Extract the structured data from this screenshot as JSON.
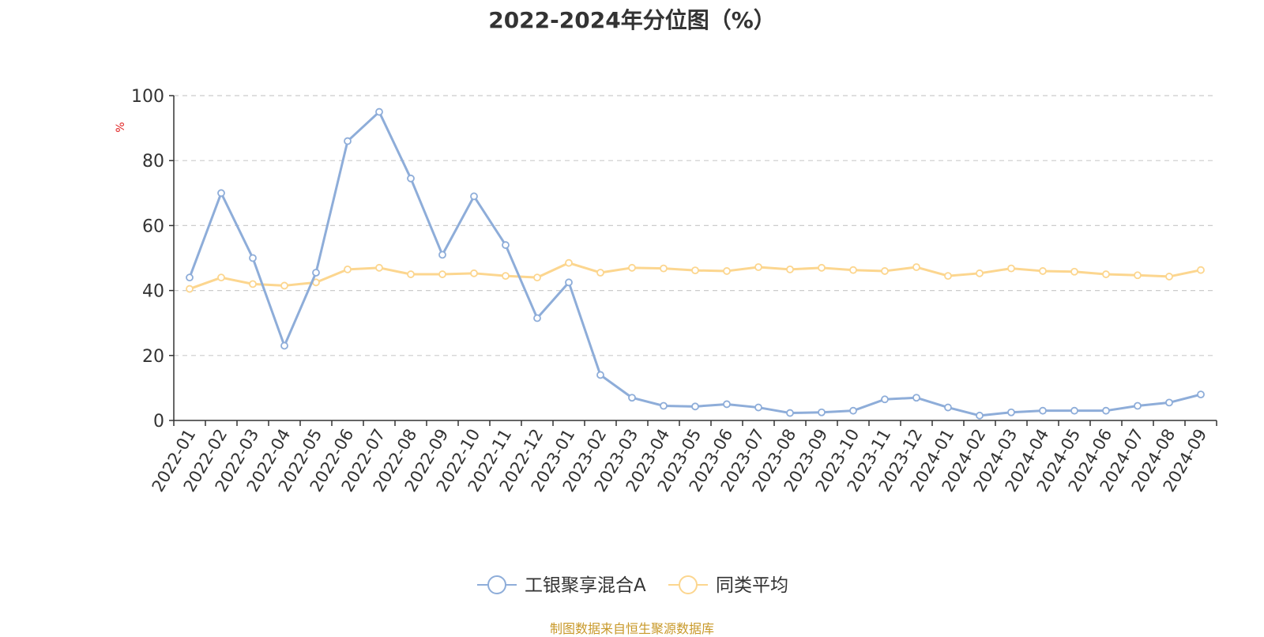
{
  "chart_data": {
    "type": "line",
    "title": "2022-2024年分位图（%）",
    "ylabel": "%",
    "xlabel": "",
    "ylim": [
      0,
      100
    ],
    "yticks": [
      0,
      20,
      40,
      60,
      80,
      100
    ],
    "grid": true,
    "legend_position": "bottom",
    "categories": [
      "2022-01",
      "2022-02",
      "2022-03",
      "2022-04",
      "2022-05",
      "2022-06",
      "2022-07",
      "2022-08",
      "2022-09",
      "2022-10",
      "2022-11",
      "2022-12",
      "2023-01",
      "2023-02",
      "2023-03",
      "2023-04",
      "2023-05",
      "2023-06",
      "2023-07",
      "2023-08",
      "2023-09",
      "2023-10",
      "2023-11",
      "2023-12",
      "2024-01",
      "2024-02",
      "2024-03",
      "2024-04",
      "2024-05",
      "2024-06",
      "2024-07",
      "2024-08",
      "2024-09"
    ],
    "series": [
      {
        "name": "工银聚享混合A",
        "color": "#8eadd9",
        "values": [
          44,
          70,
          50,
          23,
          45.5,
          86,
          95,
          74.5,
          51,
          69,
          54,
          31.5,
          42.5,
          14,
          7,
          4.5,
          4.3,
          5,
          4,
          2.3,
          2.5,
          3,
          6.5,
          7,
          4,
          1.5,
          2.5,
          3,
          3,
          3,
          4.5,
          5.5,
          8
        ]
      },
      {
        "name": "同类平均",
        "color": "#fcd68f",
        "values": [
          40.5,
          44,
          42,
          41.5,
          42.5,
          46.5,
          47,
          45,
          45,
          45.3,
          44.5,
          44,
          48.5,
          45.5,
          47,
          46.8,
          46.2,
          46,
          47.2,
          46.5,
          47,
          46.3,
          46,
          47.2,
          44.5,
          45.3,
          46.8,
          46,
          45.8,
          45,
          44.7,
          44.3,
          46.3
        ]
      }
    ]
  },
  "source": "制图数据来自恒生聚源数据库"
}
